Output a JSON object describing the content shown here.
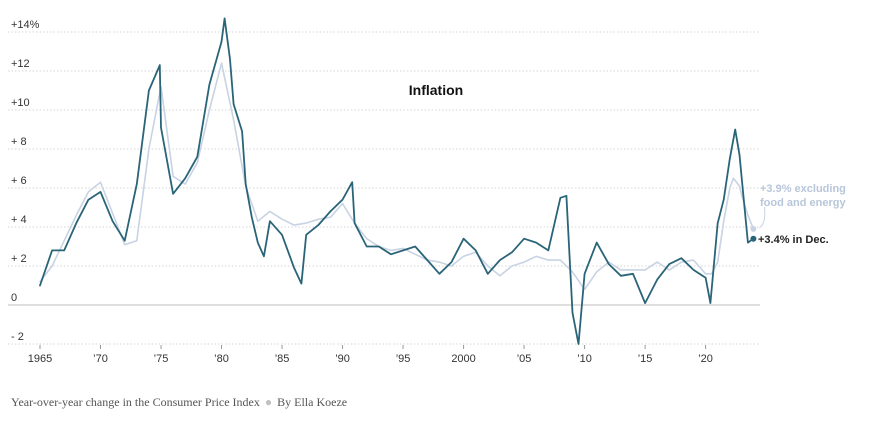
{
  "chart_data": {
    "type": "line",
    "title": "Inflation",
    "caption": "Year-over-year change in the Consumer Price Index",
    "byline": "By Ella Koeze",
    "xlim": [
      1965,
      2024
    ],
    "ylim": [
      -2.5,
      14.5
    ],
    "y_ticks": [
      {
        "value": 14,
        "label": "+14%"
      },
      {
        "value": 12,
        "label": "+12"
      },
      {
        "value": 10,
        "label": "+10"
      },
      {
        "value": 8,
        "label": "+ 8"
      },
      {
        "value": 6,
        "label": "+ 6"
      },
      {
        "value": 4,
        "label": "+ 4"
      },
      {
        "value": 2,
        "label": "+ 2"
      },
      {
        "value": 0,
        "label": "0"
      },
      {
        "value": -2,
        "label": "- 2"
      }
    ],
    "x_ticks": [
      {
        "value": 1965,
        "label": "1965"
      },
      {
        "value": 1970,
        "label": "’70"
      },
      {
        "value": 1975,
        "label": "’75"
      },
      {
        "value": 1980,
        "label": "’80"
      },
      {
        "value": 1985,
        "label": "’85"
      },
      {
        "value": 1990,
        "label": "’90"
      },
      {
        "value": 1995,
        "label": "’95"
      },
      {
        "value": 2000,
        "label": "2000"
      },
      {
        "value": 2005,
        "label": "’05"
      },
      {
        "value": 2010,
        "label": "’10"
      },
      {
        "value": 2015,
        "label": "’15"
      },
      {
        "value": 2020,
        "label": "’20"
      }
    ],
    "grid": true,
    "series": [
      {
        "key": "core",
        "color": "#c8d3e3",
        "x": [
          1965,
          1966,
          1967,
          1968,
          1969,
          1970,
          1971,
          1972,
          1973,
          1974,
          1975,
          1976,
          1977,
          1978,
          1979,
          1980,
          1981,
          1982,
          1983,
          1984,
          1985,
          1986,
          1987,
          1988,
          1989,
          1990,
          1991,
          1992,
          1993,
          1994,
          1995,
          1996,
          1997,
          1998,
          1999,
          2000,
          2001,
          2002,
          2003,
          2004,
          2005,
          2006,
          2007,
          2008,
          2009,
          2010,
          2011,
          2012,
          2013,
          2014,
          2015,
          2016,
          2017,
          2018,
          2019,
          2020,
          2020.5,
          2021,
          2021.5,
          2022,
          2022.3,
          2022.8,
          2023,
          2023.5,
          2023.95
        ],
        "y": [
          1.2,
          2.0,
          3.3,
          4.6,
          5.8,
          6.3,
          4.7,
          3.1,
          3.3,
          8.0,
          11.2,
          6.6,
          6.2,
          7.3,
          10.0,
          12.4,
          9.5,
          6.1,
          4.3,
          4.8,
          4.4,
          4.1,
          4.2,
          4.4,
          4.5,
          5.2,
          4.2,
          3.4,
          3.0,
          2.8,
          2.9,
          2.6,
          2.3,
          2.2,
          2.0,
          2.5,
          2.7,
          2.0,
          1.5,
          2.0,
          2.2,
          2.5,
          2.3,
          2.3,
          1.7,
          0.8,
          1.7,
          2.2,
          1.8,
          1.8,
          1.8,
          2.2,
          1.8,
          2.2,
          2.3,
          1.6,
          1.6,
          2.2,
          4.3,
          6.0,
          6.5,
          6.1,
          5.6,
          4.6,
          3.9
        ],
        "end_label": "+3.9% excluding food and energy"
      },
      {
        "key": "headline",
        "color": "#2a6478",
        "x": [
          1965,
          1966,
          1967,
          1968,
          1969,
          1970,
          1971,
          1972,
          1973,
          1974,
          1974.9,
          1975,
          1976,
          1977,
          1978,
          1979,
          1980,
          1980.25,
          1980.7,
          1981,
          1981.7,
          1982,
          1982.5,
          1983,
          1983.5,
          1984,
          1985,
          1986,
          1986.6,
          1987,
          1988,
          1989,
          1990,
          1990.8,
          1991,
          1992,
          1993,
          1994,
          1995,
          1996,
          1997,
          1998,
          1999,
          2000,
          2001,
          2002,
          2003,
          2004,
          2005,
          2006,
          2007,
          2008,
          2008.5,
          2009,
          2009.5,
          2010,
          2011,
          2012,
          2013,
          2014,
          2015,
          2016,
          2017,
          2018,
          2019,
          2020,
          2020.4,
          2021,
          2021.5,
          2022,
          2022.45,
          2022.8,
          2023,
          2023.5,
          2023.95
        ],
        "y": [
          1.0,
          2.8,
          2.8,
          4.2,
          5.4,
          5.8,
          4.3,
          3.3,
          6.2,
          11.0,
          12.3,
          9.1,
          5.7,
          6.5,
          7.6,
          11.3,
          13.5,
          14.7,
          12.6,
          10.3,
          8.9,
          6.2,
          4.5,
          3.2,
          2.5,
          4.3,
          3.6,
          1.9,
          1.1,
          3.6,
          4.1,
          4.8,
          5.4,
          6.3,
          4.2,
          3.0,
          3.0,
          2.6,
          2.8,
          3.0,
          2.3,
          1.6,
          2.2,
          3.4,
          2.8,
          1.6,
          2.3,
          2.7,
          3.4,
          3.2,
          2.8,
          5.5,
          5.6,
          -0.4,
          -2.0,
          1.6,
          3.2,
          2.1,
          1.5,
          1.6,
          0.1,
          1.3,
          2.1,
          2.4,
          1.8,
          1.4,
          0.1,
          4.2,
          5.4,
          7.5,
          9.0,
          7.7,
          6.4,
          3.2,
          3.4
        ],
        "end_label": "+3.4% in Dec."
      }
    ]
  }
}
